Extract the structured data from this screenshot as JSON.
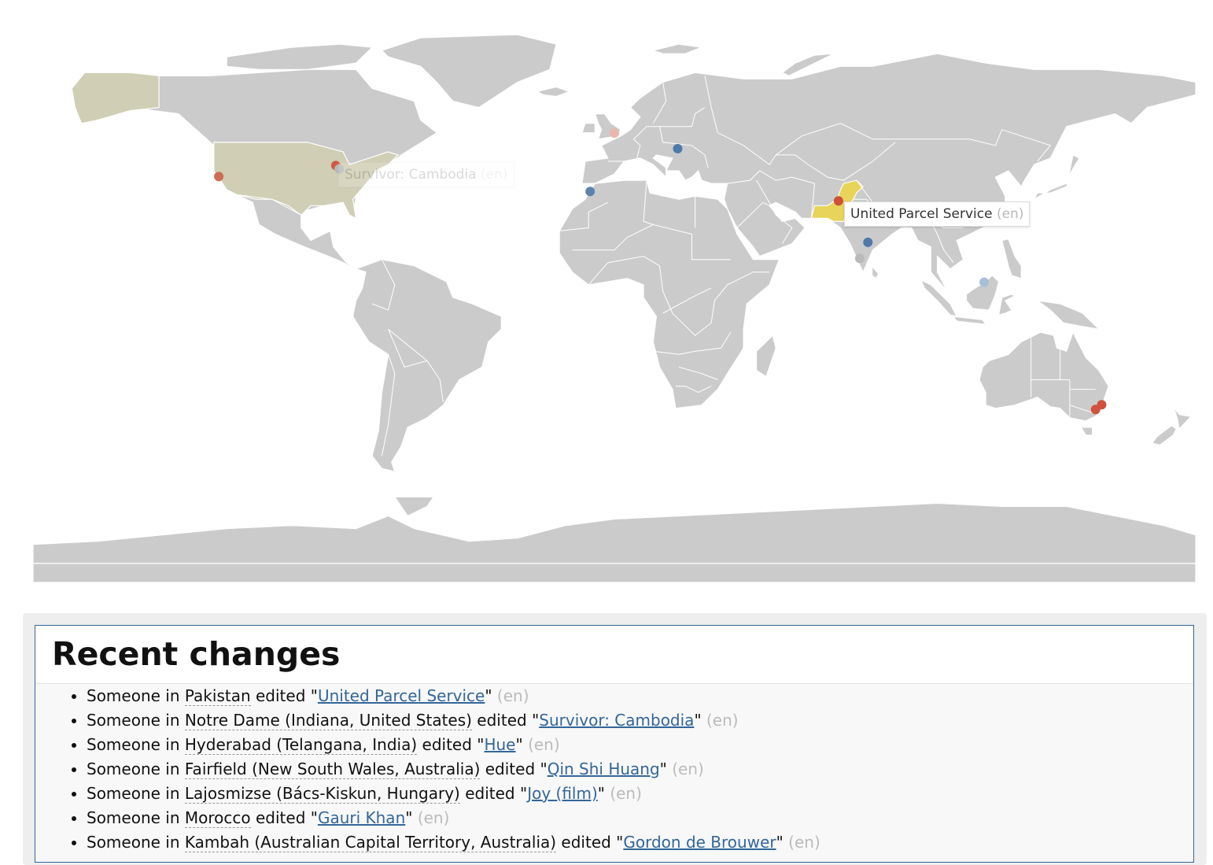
{
  "map": {
    "markers": [
      {
        "name": "marker-notre-dame",
        "lon": -86.25,
        "lat": 41.7,
        "color": "#cf5a45"
      },
      {
        "name": "marker-california",
        "lon": -122.5,
        "lat": 38.2,
        "color": "#cf6a55"
      },
      {
        "name": "marker-us-faded",
        "lon": -85.2,
        "lat": 40.6,
        "color": "#b9b9b9"
      },
      {
        "name": "marker-uk-faded",
        "lon": 0.0,
        "lat": 51.9,
        "color": "#e9b7ad"
      },
      {
        "name": "marker-lajosmizse",
        "lon": 19.6,
        "lat": 47.0,
        "color": "#4d7aa9"
      },
      {
        "name": "marker-morocco",
        "lon": -7.5,
        "lat": 33.5,
        "color": "#5d82ad"
      },
      {
        "name": "marker-pakistan",
        "lon": 69.4,
        "lat": 30.5,
        "color": "#cf4f3b"
      },
      {
        "name": "marker-hyderabad",
        "lon": 78.5,
        "lat": 17.4,
        "color": "#4d7aa9"
      },
      {
        "name": "marker-india-faded",
        "lon": 76.0,
        "lat": 12.3,
        "color": "#b9b9b9"
      },
      {
        "name": "marker-borneo-faded",
        "lon": 114.5,
        "lat": 4.8,
        "color": "#a9bfd8"
      },
      {
        "name": "marker-fairfield",
        "lon": 150.9,
        "lat": -33.9,
        "color": "#d0523e"
      },
      {
        "name": "marker-kambah",
        "lon": 149.0,
        "lat": -35.4,
        "color": "#d0523e"
      }
    ],
    "tooltips": {
      "active": {
        "title": "United Parcel Service",
        "lang": "(en)"
      },
      "faded": {
        "title": "Survivor: Cambodia",
        "lang": "(en)"
      }
    }
  },
  "recent": {
    "heading": "Recent changes",
    "items": [
      {
        "prefix": "Someone in ",
        "place": "Pakistan",
        "mid": " edited \"",
        "article": "United Parcel Service",
        "end": "\"",
        "lang": "(en)"
      },
      {
        "prefix": "Someone in ",
        "place": "Notre Dame (Indiana, United States)",
        "mid": " edited \"",
        "article": "Survivor: Cambodia",
        "end": "\"",
        "lang": "(en)"
      },
      {
        "prefix": "Someone in ",
        "place": "Hyderabad (Telangana, India)",
        "mid": " edited \"",
        "article": "Hue",
        "end": "\"",
        "lang": "(en)"
      },
      {
        "prefix": "Someone in ",
        "place": "Fairfield (New South Wales, Australia)",
        "mid": " edited \"",
        "article": "Qin Shi Huang",
        "end": "\"",
        "lang": "(en)"
      },
      {
        "prefix": "Someone in ",
        "place": "Lajosmizse (Bács-Kiskun, Hungary)",
        "mid": " edited \"",
        "article": "Joy (film)",
        "end": "\"",
        "lang": "(en)"
      },
      {
        "prefix": "Someone in ",
        "place": "Morocco",
        "mid": " edited \"",
        "article": "Gauri Khan",
        "end": "\"",
        "lang": "(en)"
      },
      {
        "prefix": "Someone in ",
        "place": "Kambah (Australian Capital Territory, Australia)",
        "mid": " edited \"",
        "article": "Gordon de Brouwer",
        "end": "\"",
        "lang": "(en)"
      }
    ]
  }
}
